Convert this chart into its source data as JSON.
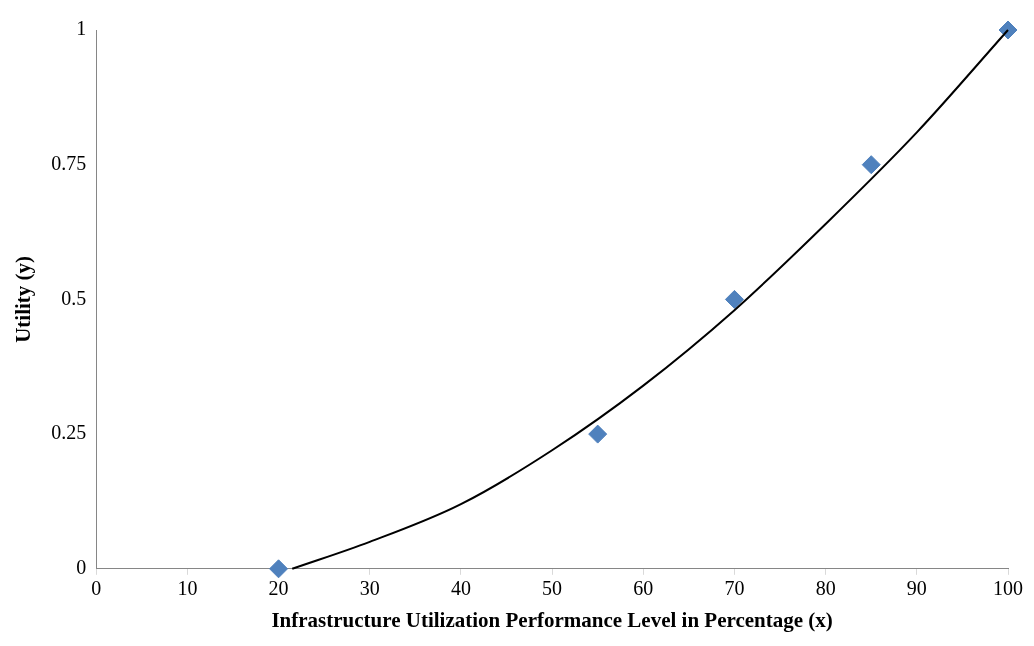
{
  "chart_data": {
    "type": "scatter",
    "xlabel": "Infrastructure Utilization Performance Level in Percentage (x)",
    "ylabel": "Utility (y)",
    "xlim": [
      0,
      100
    ],
    "xticks": [
      0,
      10,
      20,
      30,
      40,
      50,
      60,
      70,
      80,
      90,
      100
    ],
    "ylim": [
      0,
      1
    ],
    "yticks": [
      0,
      0.25,
      0.5,
      0.75,
      1
    ],
    "grid": false,
    "legend": false,
    "series": [
      {
        "type": "scatter",
        "color": "#4f81bd",
        "marker": "diamond",
        "x": [
          20,
          55,
          70,
          85,
          100
        ],
        "values": [
          0,
          0.25,
          0.5,
          0.75,
          1
        ]
      },
      {
        "type": "line",
        "color": "#000000",
        "marker": "none",
        "line_style": "solid",
        "x": [
          21.5,
          30,
          40,
          50,
          60,
          70,
          80,
          90,
          100
        ],
        "values": [
          0,
          0.05,
          0.12,
          0.22,
          0.34,
          0.48,
          0.64,
          0.81,
          1
        ]
      }
    ]
  }
}
